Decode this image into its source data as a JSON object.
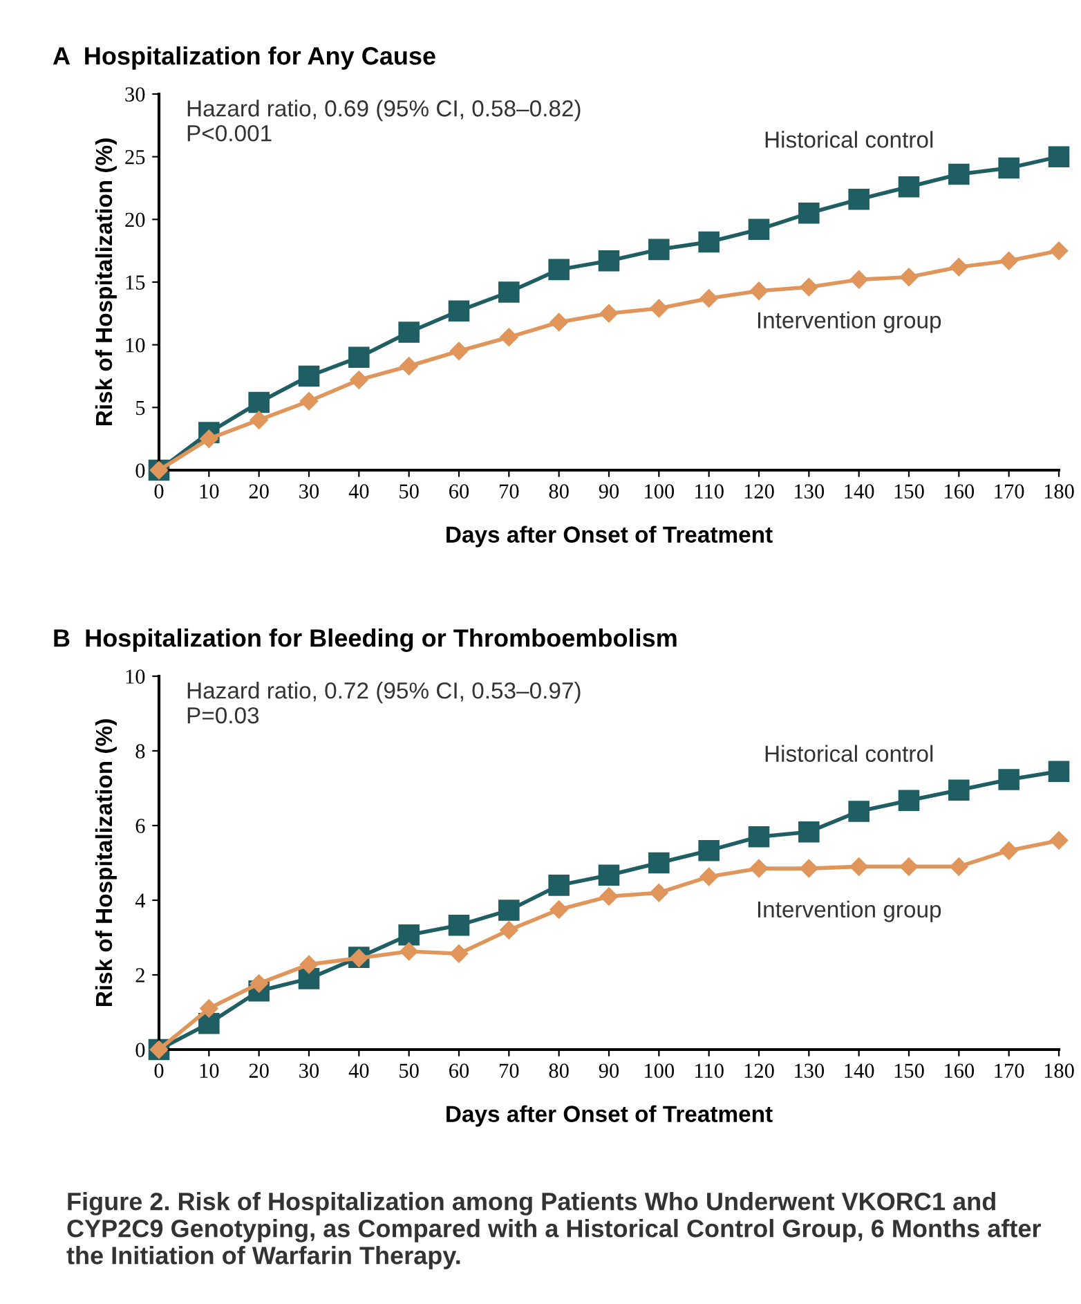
{
  "chart_data": [
    {
      "type": "line",
      "title": "A  Hospitalization for Any Cause",
      "xlabel": "Days after Onset of Treatment",
      "ylabel": "Risk of Hospitalization (%)",
      "annotations": [
        "Hazard ratio, 0.69 (95% CI, 0.58–0.82)\nP<0.001"
      ],
      "x": [
        0,
        10,
        20,
        30,
        40,
        50,
        60,
        70,
        80,
        90,
        100,
        110,
        120,
        130,
        140,
        150,
        160,
        170,
        180
      ],
      "series": [
        {
          "name": "Historical control",
          "color": "#1f5f63",
          "marker": "square",
          "values": [
            0,
            3.0,
            5.4,
            7.5,
            9.0,
            11.0,
            12.7,
            14.2,
            16.0,
            16.7,
            17.6,
            18.2,
            19.2,
            20.5,
            21.6,
            22.6,
            23.6,
            24.1,
            25.0
          ]
        },
        {
          "name": "Intervention group",
          "color": "#e0955a",
          "marker": "diamond",
          "values": [
            0,
            2.5,
            4.0,
            5.5,
            7.2,
            8.3,
            9.5,
            10.6,
            11.8,
            12.5,
            12.9,
            13.7,
            14.3,
            14.6,
            15.2,
            15.4,
            16.2,
            16.7,
            17.5
          ]
        }
      ],
      "xlim": [
        0,
        180
      ],
      "xticks": [
        0,
        10,
        20,
        30,
        40,
        50,
        60,
        70,
        80,
        90,
        100,
        110,
        120,
        130,
        140,
        150,
        160,
        170,
        180
      ],
      "ylim": [
        0,
        30
      ],
      "yticks": [
        0,
        5,
        10,
        15,
        20,
        25,
        30
      ],
      "grid": false,
      "legend": false,
      "line_style": "solid"
    },
    {
      "type": "line",
      "title": "B  Hospitalization for Bleeding or Thromboembolism",
      "xlabel": "Days after Onset of Treatment",
      "ylabel": "Risk of Hospitalization (%)",
      "annotations": [
        "Hazard ratio, 0.72 (95% CI, 0.53–0.97)\nP=0.03",
        "Figure 2. Risk of Hospitalization among Patients Who Underwent VKORC1 and CYP2C9 Genotyping, as Compared with a Historical Control Group, 6 Months after the Initiation of Warfarin Therapy."
      ],
      "x": [
        0,
        10,
        20,
        30,
        40,
        50,
        60,
        70,
        80,
        90,
        100,
        110,
        120,
        130,
        140,
        150,
        160,
        170,
        180
      ],
      "series": [
        {
          "name": "Historical control",
          "color": "#1f5f63",
          "marker": "square",
          "values": [
            0,
            0.7,
            1.57,
            1.9,
            2.47,
            3.07,
            3.33,
            3.73,
            4.4,
            4.67,
            5.0,
            5.33,
            5.7,
            5.83,
            6.38,
            6.67,
            6.95,
            7.23,
            7.45
          ]
        },
        {
          "name": "Intervention group",
          "color": "#e0955a",
          "marker": "diamond",
          "values": [
            0,
            1.1,
            1.77,
            2.28,
            2.45,
            2.63,
            2.57,
            3.2,
            3.75,
            4.1,
            4.2,
            4.63,
            4.85,
            4.85,
            4.9,
            4.9,
            4.9,
            5.33,
            5.6
          ]
        }
      ],
      "xlim": [
        0,
        180
      ],
      "xticks": [
        0,
        10,
        20,
        30,
        40,
        50,
        60,
        70,
        80,
        90,
        100,
        110,
        120,
        130,
        140,
        150,
        160,
        170,
        180
      ],
      "ylim": [
        0,
        10
      ],
      "yticks": [
        0,
        2,
        4,
        6,
        8,
        10
      ],
      "grid": false,
      "legend": false,
      "line_style": "solid"
    }
  ]
}
